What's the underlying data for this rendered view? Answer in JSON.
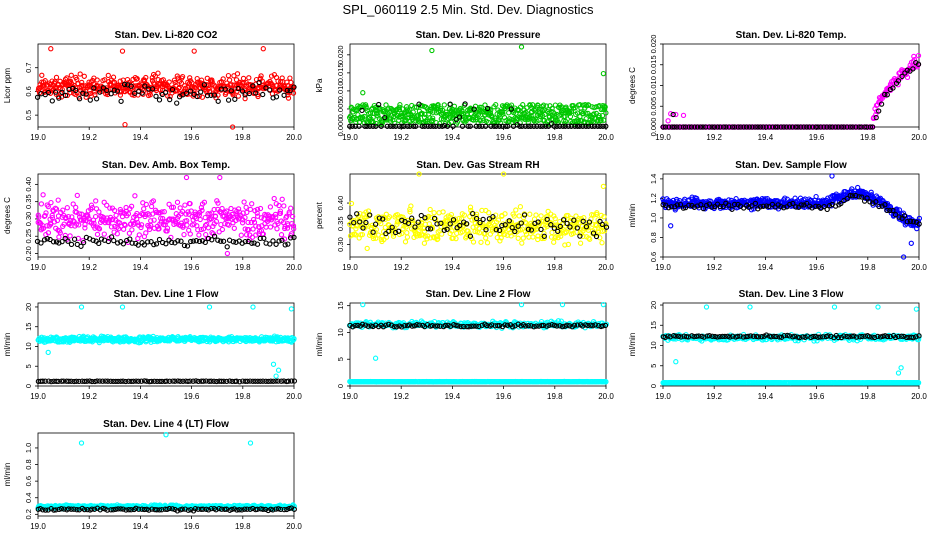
{
  "title": "SPL_060119  2.5 Min. Std. Dev. Diagnostics",
  "colors": {
    "red": "#ff0000",
    "black": "#000000",
    "green": "#00c800",
    "magenta": "#ff00ff",
    "yellow": "#ffff00",
    "blue": "#0000ff",
    "cyan": "#00ffff"
  },
  "chart_data": [
    {
      "type": "scatter",
      "title": "Stan. Dev. Li-820 CO2",
      "ylabel": "Licor ppm",
      "xlim": [
        19.0,
        20.0
      ],
      "ylim": [
        0.45,
        0.8
      ],
      "xticks": [
        "19.0",
        "19.2",
        "19.4",
        "19.6",
        "19.8",
        "20.0"
      ],
      "yticks": [
        {
          "v": 0.5,
          "label": "0.5"
        },
        {
          "v": 0.6,
          "label": "0.6"
        },
        {
          "v": 0.7,
          "label": "0.7"
        }
      ],
      "series": [
        {
          "name": "red",
          "color": "red",
          "gen": {
            "n": 460,
            "kind": "noise",
            "base": 0.62,
            "spread": 0.06,
            "seed": 11
          },
          "outliers": [
            [
              19.05,
              0.78
            ],
            [
              19.33,
              0.77
            ],
            [
              19.61,
              0.77
            ],
            [
              19.88,
              0.78
            ],
            [
              19.34,
              0.46
            ],
            [
              19.76,
              0.45
            ]
          ]
        },
        {
          "name": "black",
          "color": "black",
          "gen": {
            "n": 75,
            "kind": "noise",
            "base": 0.6,
            "spread": 0.05,
            "seed": 12
          }
        }
      ]
    },
    {
      "type": "scatter",
      "title": "Stan. Dev. Li-820 Pressure",
      "ylabel": "kPa",
      "xlim": [
        19.0,
        20.0
      ],
      "ylim": [
        0.0,
        0.023
      ],
      "xticks": [
        "19.0",
        "19.2",
        "19.4",
        "19.6",
        "19.8",
        "20.0"
      ],
      "yticks": [
        {
          "v": 0.0,
          "label": "0.000"
        },
        {
          "v": 0.005,
          "label": "0.005"
        },
        {
          "v": 0.01,
          "label": "0.010"
        },
        {
          "v": 0.015,
          "label": "0.015"
        },
        {
          "v": 0.02,
          "label": "0.020"
        }
      ],
      "series": [
        {
          "name": "green",
          "color": "green",
          "gen": {
            "n": 520,
            "kind": "band",
            "base": 0.0035,
            "spread": 0.0027,
            "seed": 21
          },
          "outliers": [
            [
              19.32,
              0.0212
            ],
            [
              19.67,
              0.0222
            ],
            [
              19.99,
              0.0148
            ],
            [
              19.05,
              0.0095
            ]
          ]
        },
        {
          "name": "black",
          "color": "black",
          "gen": {
            "n": 90,
            "kind": "zerodot",
            "base": 0.0002,
            "spread": 0.007,
            "seed": 22
          }
        }
      ]
    },
    {
      "type": "scatter",
      "title": "Stan. Dev. Li-820 Temp.",
      "ylabel": "degrees C",
      "xlim": [
        19.0,
        20.0
      ],
      "ylim": [
        0.0,
        0.02
      ],
      "xticks": [
        "19.0",
        "19.2",
        "19.4",
        "19.6",
        "19.8",
        "20.0"
      ],
      "yticks": [
        {
          "v": 0.0,
          "label": "0.000"
        },
        {
          "v": 0.005,
          "label": "0.005"
        },
        {
          "v": 0.01,
          "label": "0.010"
        },
        {
          "v": 0.015,
          "label": "0.015"
        },
        {
          "v": 0.02,
          "label": "0.020"
        }
      ],
      "series": [
        {
          "name": "magenta",
          "color": "magenta",
          "gen": {
            "n": 380,
            "kind": "ramp",
            "base": 0.0,
            "spread": 0.0025,
            "seed": 31,
            "rampStart": 19.82,
            "rampTop": 0.016
          },
          "outliers": [
            [
              19.03,
              0.0032
            ],
            [
              19.05,
              0.003
            ],
            [
              19.08,
              0.0028
            ],
            [
              19.02,
              0.0015
            ]
          ]
        },
        {
          "name": "black",
          "color": "black",
          "gen": {
            "n": 90,
            "kind": "ramp",
            "base": 0.0,
            "spread": 0.0015,
            "seed": 32,
            "rampStart": 19.83,
            "rampTop": 0.0155
          },
          "outliers": [
            [
              19.04,
              0.003
            ]
          ]
        }
      ]
    },
    {
      "type": "scatter",
      "title": "Stan. Dev. Amb. Box Temp.",
      "ylabel": "degrees C",
      "xlim": [
        19.0,
        20.0
      ],
      "ylim": [
        0.19,
        0.43
      ],
      "xticks": [
        "19.0",
        "19.2",
        "19.4",
        "19.6",
        "19.8",
        "20.0"
      ],
      "yticks": [
        {
          "v": 0.2,
          "label": "0.20"
        },
        {
          "v": 0.25,
          "label": "0.25"
        },
        {
          "v": 0.3,
          "label": "0.30"
        },
        {
          "v": 0.35,
          "label": "0.35"
        },
        {
          "v": 0.4,
          "label": "0.40"
        }
      ],
      "series": [
        {
          "name": "magenta",
          "color": "magenta",
          "gen": {
            "n": 420,
            "kind": "noise",
            "base": 0.3,
            "spread": 0.07,
            "seed": 41
          },
          "outliers": [
            [
              19.58,
              0.42
            ],
            [
              19.71,
              0.42
            ],
            [
              19.02,
              0.37
            ],
            [
              19.74,
              0.2
            ]
          ]
        },
        {
          "name": "black",
          "color": "black",
          "gen": {
            "n": 85,
            "kind": "noise",
            "base": 0.235,
            "spread": 0.02,
            "seed": 42
          }
        }
      ]
    },
    {
      "type": "scatter",
      "title": "Stan. Dev. Gas Stream RH",
      "ylabel": "percent",
      "xlim": [
        19.0,
        20.0
      ],
      "ylim": [
        0.27,
        0.47
      ],
      "xticks": [
        "19.0",
        "19.2",
        "19.4",
        "19.6",
        "19.8",
        "20.0"
      ],
      "yticks": [
        {
          "v": 0.3,
          "label": "0.30"
        },
        {
          "v": 0.35,
          "label": "0.35"
        },
        {
          "v": 0.4,
          "label": "0.40"
        }
      ],
      "series": [
        {
          "name": "yellow",
          "color": "yellow",
          "gen": {
            "n": 440,
            "kind": "noise",
            "base": 0.345,
            "spread": 0.05,
            "seed": 51
          },
          "outliers": [
            [
              19.27,
              0.47
            ],
            [
              19.6,
              0.47
            ],
            [
              19.99,
              0.44
            ]
          ]
        },
        {
          "name": "black",
          "color": "black",
          "gen": {
            "n": 80,
            "kind": "noise",
            "base": 0.35,
            "spread": 0.035,
            "seed": 52
          }
        }
      ]
    },
    {
      "type": "scatter",
      "title": "Stan. Dev. Sample Flow",
      "ylabel": "ml/min",
      "xlim": [
        19.0,
        20.0
      ],
      "ylim": [
        0.6,
        1.45
      ],
      "xticks": [
        "19.0",
        "19.2",
        "19.4",
        "19.6",
        "19.8",
        "20.0"
      ],
      "yticks": [
        {
          "v": 0.6,
          "label": "0.6"
        },
        {
          "v": 0.8,
          "label": "0.8"
        },
        {
          "v": 1.0,
          "label": "1.0"
        },
        {
          "v": 1.2,
          "label": "1.2"
        },
        {
          "v": 1.4,
          "label": "1.4"
        }
      ],
      "series": [
        {
          "name": "blue",
          "color": "blue",
          "gen": {
            "n": 520,
            "kind": "dip",
            "base": 1.15,
            "spread": 0.07,
            "seed": 61,
            "peakAt": 19.75,
            "peak": 0.12,
            "tailAt": 19.85,
            "tailTo": 0.95
          },
          "outliers": [
            [
              19.66,
              1.43
            ],
            [
              19.03,
              0.92
            ],
            [
              19.97,
              0.74
            ],
            [
              19.94,
              0.6
            ]
          ]
        },
        {
          "name": "black",
          "color": "black",
          "gen": {
            "n": 90,
            "kind": "dip",
            "base": 1.12,
            "spread": 0.04,
            "seed": 62,
            "peakAt": 19.75,
            "peak": 0.1,
            "tailAt": 19.85,
            "tailTo": 0.95
          }
        }
      ]
    },
    {
      "type": "scatter",
      "title": "Stan. Dev. Line 1 Flow",
      "ylabel": "ml/min",
      "xlim": [
        19.0,
        20.0
      ],
      "ylim": [
        0,
        21
      ],
      "xticks": [
        "19.0",
        "19.2",
        "19.4",
        "19.6",
        "19.8",
        "20.0"
      ],
      "yticks": [
        {
          "v": 0,
          "label": "0"
        },
        {
          "v": 5,
          "label": "5"
        },
        {
          "v": 10,
          "label": "10"
        },
        {
          "v": 15,
          "label": "15"
        },
        {
          "v": 20,
          "label": "20"
        }
      ],
      "series": [
        {
          "name": "cyan",
          "color": "cyan",
          "gen": {
            "n": 520,
            "kind": "noise",
            "base": 11.8,
            "spread": 0.9,
            "seed": 71
          },
          "outliers": [
            [
              19.17,
              20
            ],
            [
              19.33,
              20
            ],
            [
              19.67,
              20
            ],
            [
              19.84,
              20
            ],
            [
              19.99,
              19.5
            ],
            [
              19.04,
              8.5
            ],
            [
              19.92,
              5.5
            ],
            [
              19.93,
              2.5
            ],
            [
              19.94,
              4
            ]
          ]
        },
        {
          "name": "black",
          "color": "black",
          "gen": {
            "n": 100,
            "kind": "noise",
            "base": 1.2,
            "spread": 0.1,
            "seed": 72
          }
        }
      ]
    },
    {
      "type": "scatter",
      "title": "Stan. Dev. Line 2 Flow",
      "ylabel": "ml/min",
      "xlim": [
        19.0,
        20.0
      ],
      "ylim": [
        0,
        15.5
      ],
      "xticks": [
        "19.0",
        "19.2",
        "19.4",
        "19.6",
        "19.8",
        "20.0"
      ],
      "yticks": [
        {
          "v": 0,
          "label": "0"
        },
        {
          "v": 5,
          "label": "5"
        },
        {
          "v": 10,
          "label": "10"
        },
        {
          "v": 15,
          "label": "15"
        }
      ],
      "series": [
        {
          "name": "cyan",
          "color": "cyan",
          "gen": {
            "n": 300,
            "kind": "noise",
            "base": 11.5,
            "spread": 0.7,
            "seed": 81
          },
          "outliers": [
            [
              19.05,
              15.2
            ],
            [
              19.67,
              15.2
            ],
            [
              19.83,
              15.2
            ],
            [
              19.99,
              15.2
            ],
            [
              19.1,
              5.2
            ]
          ]
        },
        {
          "name": "cyan-low",
          "color": "cyan",
          "gen": {
            "n": 420,
            "kind": "noise",
            "base": 0.8,
            "spread": 0.05,
            "seed": 82
          }
        },
        {
          "name": "black",
          "color": "black",
          "gen": {
            "n": 100,
            "kind": "noise",
            "base": 11.3,
            "spread": 0.35,
            "seed": 83
          }
        }
      ]
    },
    {
      "type": "scatter",
      "title": "Stan. Dev. Line 3 Flow",
      "ylabel": "ml/min",
      "xlim": [
        19.0,
        20.0
      ],
      "ylim": [
        0,
        20.5
      ],
      "xticks": [
        "19.0",
        "19.2",
        "19.4",
        "19.6",
        "19.8",
        "20.0"
      ],
      "yticks": [
        {
          "v": 0,
          "label": "0"
        },
        {
          "v": 5,
          "label": "5"
        },
        {
          "v": 10,
          "label": "10"
        },
        {
          "v": 15,
          "label": "15"
        },
        {
          "v": 20,
          "label": "20"
        }
      ],
      "series": [
        {
          "name": "cyan",
          "color": "cyan",
          "gen": {
            "n": 300,
            "kind": "noise",
            "base": 12.0,
            "spread": 0.9,
            "seed": 91
          },
          "outliers": [
            [
              19.17,
              19.5
            ],
            [
              19.34,
              19.5
            ],
            [
              19.67,
              19.5
            ],
            [
              19.84,
              19.5
            ],
            [
              19.99,
              19
            ],
            [
              19.05,
              6
            ],
            [
              19.92,
              3.2
            ],
            [
              19.93,
              4.5
            ]
          ]
        },
        {
          "name": "cyan-low",
          "color": "cyan",
          "gen": {
            "n": 420,
            "kind": "noise",
            "base": 0.8,
            "spread": 0.05,
            "seed": 92
          }
        },
        {
          "name": "black",
          "color": "black",
          "gen": {
            "n": 100,
            "kind": "noise",
            "base": 12.2,
            "spread": 0.4,
            "seed": 93
          }
        }
      ]
    },
    {
      "type": "scatter",
      "title": "Stan. Dev. Line 4 (LT) Flow",
      "ylabel": "ml/min",
      "xlim": [
        19.0,
        20.0
      ],
      "ylim": [
        0.18,
        1.18
      ],
      "xticks": [
        "19.0",
        "19.2",
        "19.4",
        "19.6",
        "19.8",
        "20.0"
      ],
      "yticks": [
        {
          "v": 0.2,
          "label": "0.2"
        },
        {
          "v": 0.4,
          "label": "0.4"
        },
        {
          "v": 0.6,
          "label": "0.6"
        },
        {
          "v": 0.8,
          "label": "0.8"
        },
        {
          "v": 1.0,
          "label": "1.0"
        }
      ],
      "series": [
        {
          "name": "cyan",
          "color": "cyan",
          "gen": {
            "n": 520,
            "kind": "noise",
            "base": 0.29,
            "spread": 0.025,
            "seed": 101
          },
          "outliers": [
            [
              19.17,
              1.06
            ],
            [
              19.5,
              1.16
            ],
            [
              19.83,
              1.06
            ]
          ]
        },
        {
          "name": "black",
          "color": "black",
          "gen": {
            "n": 100,
            "kind": "noise",
            "base": 0.26,
            "spread": 0.02,
            "seed": 102
          }
        }
      ]
    }
  ]
}
